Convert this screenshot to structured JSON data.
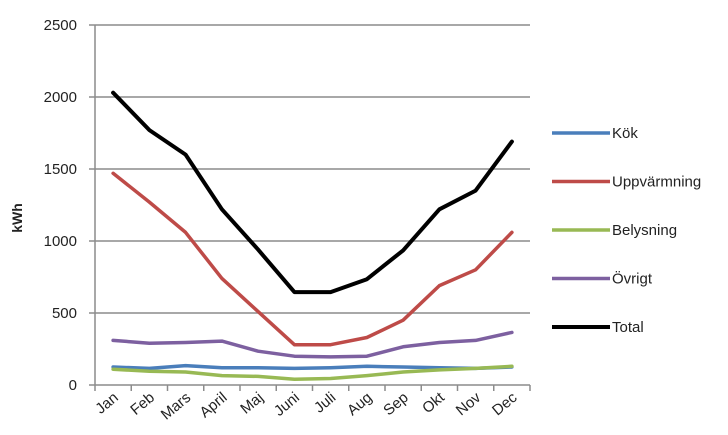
{
  "chart_data": {
    "type": "line",
    "ylabel": "kWh",
    "ylim": [
      0,
      2500
    ],
    "yticks": [
      "0",
      "500",
      "1000",
      "1500",
      "2000",
      "2500"
    ],
    "grid": true,
    "legend_position": "right",
    "categories": [
      "Jan",
      "Feb",
      "Mars",
      "April",
      "Maj",
      "Juni",
      "Juli",
      "Aug",
      "Sep",
      "Okt",
      "Nov",
      "Dec"
    ],
    "series": [
      {
        "name": "Kök",
        "color": "#4a7ebb",
        "values": [
          125,
          115,
          135,
          120,
          120,
          115,
          120,
          130,
          125,
          120,
          115,
          125
        ]
      },
      {
        "name": "Uppvärmning",
        "color": "#be4b48",
        "values": [
          1470,
          1270,
          1060,
          740,
          510,
          280,
          280,
          330,
          450,
          690,
          800,
          1060
        ]
      },
      {
        "name": "Belysning",
        "color": "#98b954",
        "values": [
          110,
          95,
          90,
          65,
          60,
          40,
          45,
          65,
          90,
          105,
          115,
          130
        ]
      },
      {
        "name": "Övrigt",
        "color": "#7d60a0",
        "values": [
          310,
          290,
          295,
          305,
          235,
          200,
          195,
          200,
          265,
          295,
          310,
          365
        ]
      },
      {
        "name": "Total",
        "color": "#000000",
        "values": [
          2030,
          1770,
          1600,
          1220,
          940,
          645,
          645,
          735,
          935,
          1220,
          1350,
          1690
        ]
      }
    ]
  }
}
